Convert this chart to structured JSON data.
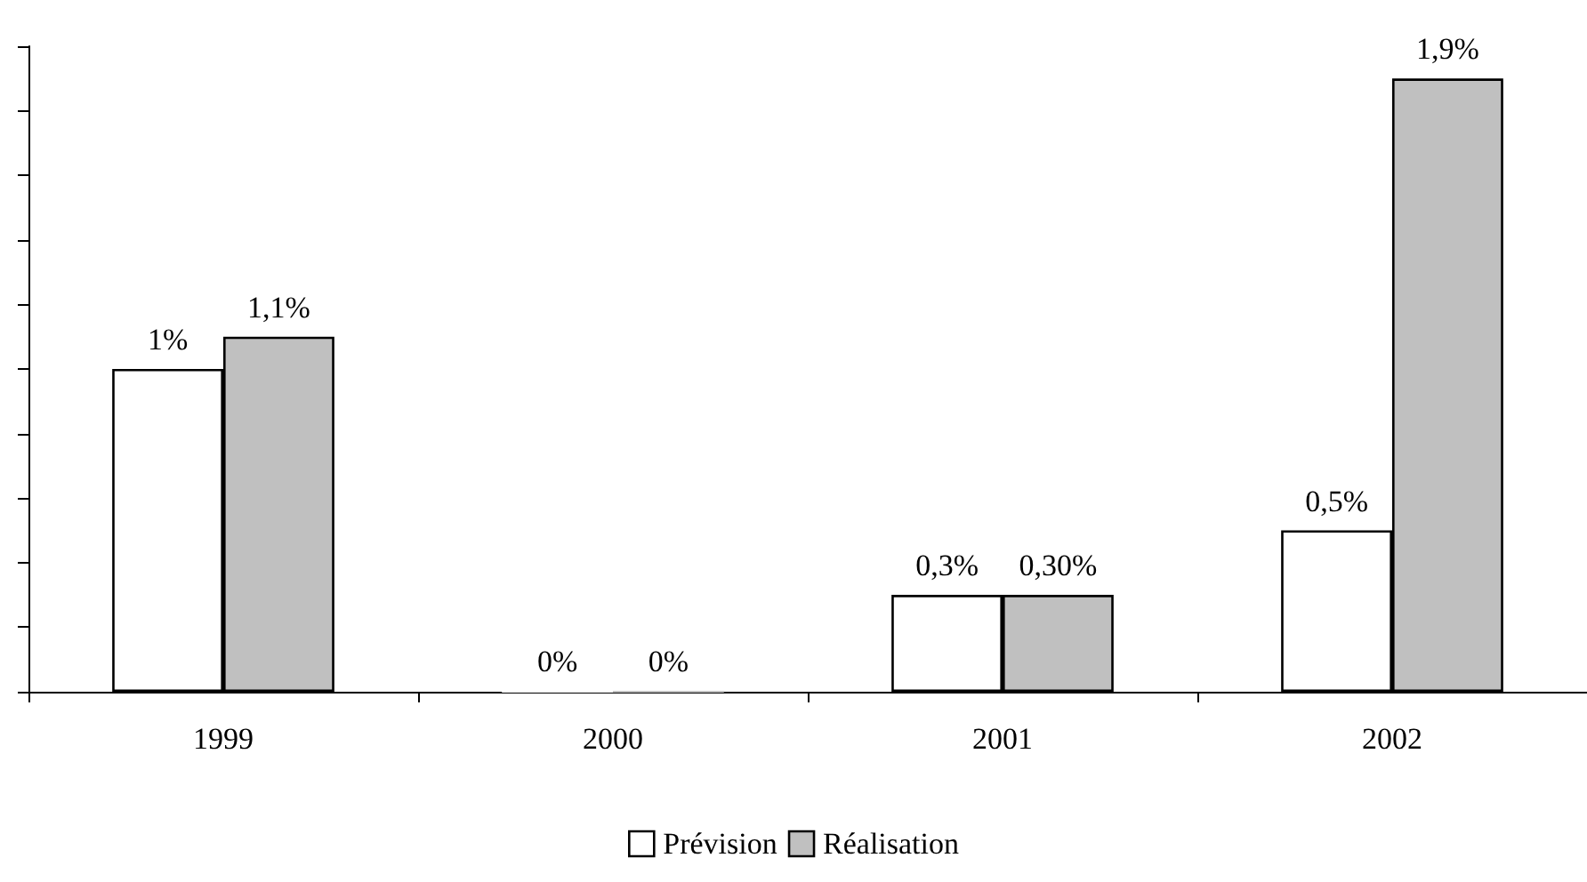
{
  "chart_data": {
    "type": "bar",
    "categories": [
      "1999",
      "2000",
      "2001",
      "2002"
    ],
    "series": [
      {
        "name": "Prévision",
        "color": "#ffffff",
        "values": [
          1,
          0,
          0.3,
          0.5
        ],
        "value_labels": [
          "1%",
          "0%",
          "0,3%",
          "0,5%"
        ]
      },
      {
        "name": "Réalisation",
        "color": "#c0c0c0",
        "values": [
          1.1,
          0,
          0.3,
          1.9
        ],
        "value_labels": [
          "1,1%",
          "0%",
          "0,30%",
          "1,9%"
        ]
      }
    ],
    "ylim": [
      0,
      2
    ],
    "tick_labels": "x",
    "grid": false,
    "legend": "bottom"
  }
}
